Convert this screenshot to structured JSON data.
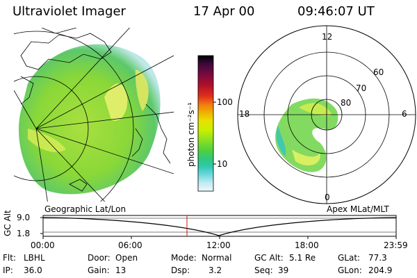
{
  "header": {
    "instrument": "Ultraviolet Imager",
    "date": "17 Apr 00",
    "time": "09:46:07 UT"
  },
  "colorbar": {
    "unit_label": "photon cm⁻²s⁻¹",
    "ticks": [
      "100",
      "10"
    ],
    "colors": [
      "#000000",
      "#3a0a3a",
      "#7a0a40",
      "#b0102a",
      "#e0301c",
      "#f07a10",
      "#f0b000",
      "#e8e000",
      "#c8f000",
      "#90e020",
      "#50d040",
      "#30c878",
      "#30c8b0",
      "#70d8e0",
      "#c0ecf0",
      "#f0f8fa"
    ]
  },
  "left_panel": {
    "projection_label": "Geographic Lat/Lon"
  },
  "right_panel": {
    "projection_label": "Apex MLat/MLT",
    "mlt_labels": {
      "top": "12",
      "left": "18",
      "right": "6",
      "bottom": "0"
    },
    "lat_labels": [
      "60",
      "70",
      "80"
    ]
  },
  "timeline": {
    "axis_label": "GC Alt",
    "y_ticks": [
      "9.0",
      "1.8"
    ],
    "x_ticks": [
      "00:00",
      "06:00",
      "12:00",
      "18:00",
      "23:59"
    ],
    "current_time_marker": "09:46"
  },
  "status": {
    "flt_label": "Flt:",
    "flt_value": "LBHL",
    "ip_label": "IP:",
    "ip_value": "36.0",
    "door_label": "Door:",
    "door_value": "Open",
    "gain_label": "Gain:",
    "gain_value": "13",
    "mode_label": "Mode:",
    "mode_value": "Normal",
    "dsp_label": "Dsp:",
    "dsp_value": "3.2",
    "gcalt_label": "GC Alt:",
    "gcalt_value": "5.1 Re",
    "seq_label": "Seq:",
    "seq_value": "39",
    "glat_label": "GLat:",
    "glat_value": "77.3",
    "glon_label": "GLon:",
    "glon_value": "204.9"
  }
}
